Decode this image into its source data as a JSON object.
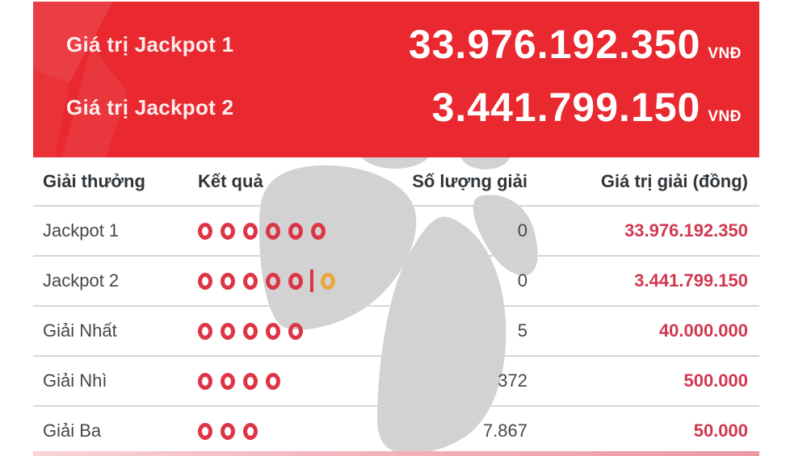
{
  "banner": {
    "rows": [
      {
        "label": "Giá trị Jackpot 1",
        "value": "33.976.192.350",
        "currency": "VNĐ"
      },
      {
        "label": "Giá trị Jackpot 2",
        "value": "3.441.799.150",
        "currency": "VNĐ"
      }
    ]
  },
  "table": {
    "columns": [
      "Giải thưởng",
      "Kết quả",
      "Số lượng giải",
      "Giá trị giải (đồng)"
    ],
    "rows": [
      {
        "prize": "Jackpot 1",
        "result": {
          "red": 6,
          "separator": false,
          "orange": 0
        },
        "count": "0",
        "value": "33.976.192.350"
      },
      {
        "prize": "Jackpot 2",
        "result": {
          "red": 5,
          "separator": true,
          "orange": 1
        },
        "count": "0",
        "value": "3.441.799.150"
      },
      {
        "prize": "Giải Nhất",
        "result": {
          "red": 5,
          "separator": false,
          "orange": 0
        },
        "count": "5",
        "value": "40.000.000"
      },
      {
        "prize": "Giải Nhì",
        "result": {
          "red": 4,
          "separator": false,
          "orange": 0
        },
        "count": "372",
        "value": "500.000"
      },
      {
        "prize": "Giải Ba",
        "result": {
          "red": 3,
          "separator": false,
          "orange": 0
        },
        "count": "7.867",
        "value": "50.000"
      }
    ]
  },
  "watermark": "vietlott-flower-logo",
  "colors": {
    "banner_red": "#e9282f",
    "value_red": "#d03850",
    "ring_red": "#dd3545",
    "ring_orange": "#eaa63e",
    "divider": "#d6d6d6",
    "text_dark": "#43484c",
    "watermark_gray": "#d2d2d2"
  }
}
